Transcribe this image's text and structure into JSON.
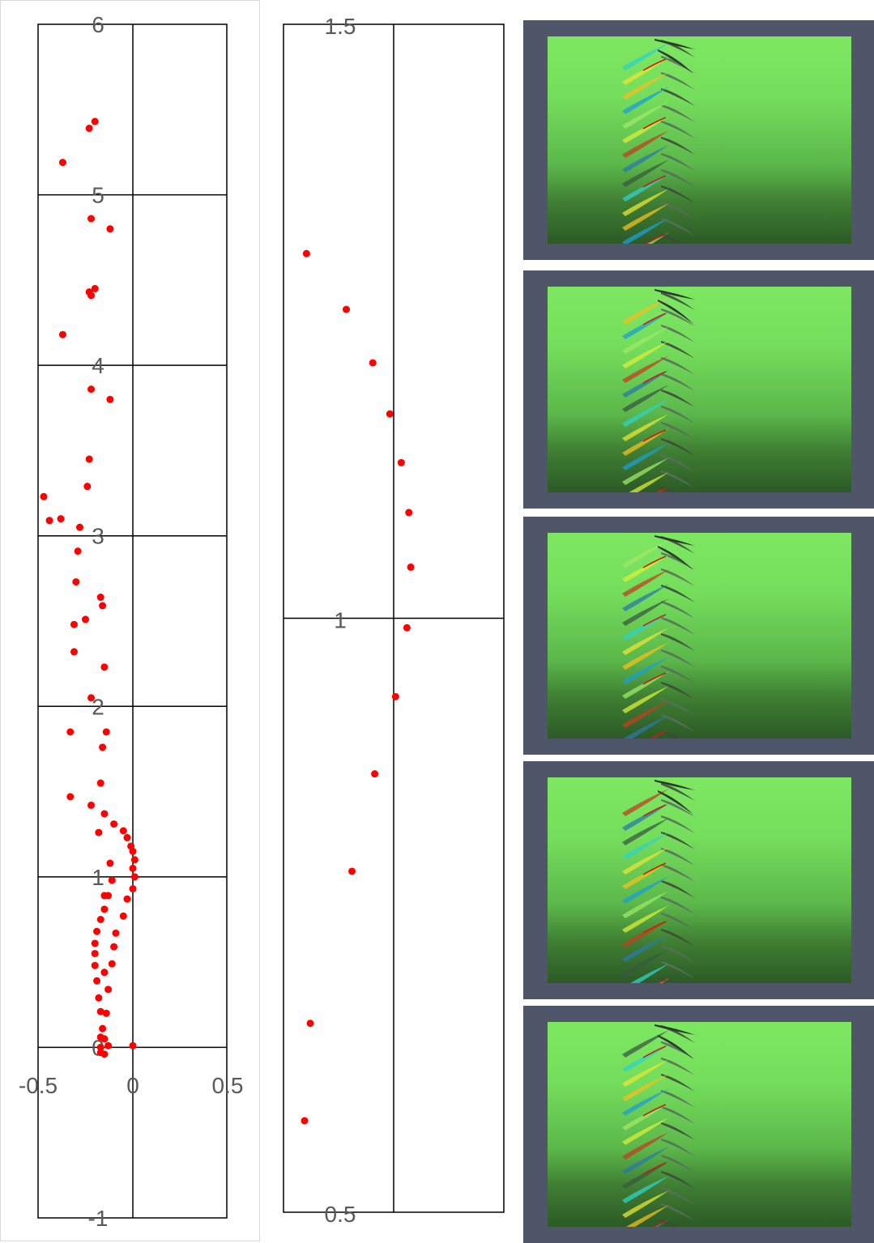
{
  "charts_colors": {
    "marker": "#ff0000",
    "axis": "#000000",
    "tick_text": "#595959",
    "panel_bg": "#50566a",
    "surface_light": "#7ee762",
    "surface_dark": "#2c5a26"
  },
  "chart_data": [
    {
      "type": "scatter",
      "title": "",
      "xlabel": "",
      "ylabel": "",
      "xlim": [
        -0.5,
        0.5
      ],
      "ylim": [
        -1,
        6
      ],
      "x_ticks": [
        "-0.5",
        "0",
        "0.5"
      ],
      "y_ticks": [
        "-1",
        "0",
        "1",
        "2",
        "3",
        "4",
        "5",
        "6"
      ],
      "grid": true,
      "marker_color": "#ff0000",
      "points": [
        [
          -0.2,
          5.43
        ],
        [
          -0.23,
          5.39
        ],
        [
          -0.37,
          5.19
        ],
        [
          -0.22,
          4.86
        ],
        [
          -0.12,
          4.8
        ],
        [
          -0.2,
          4.45
        ],
        [
          -0.23,
          4.43
        ],
        [
          -0.22,
          4.41
        ],
        [
          -0.37,
          4.18
        ],
        [
          -0.22,
          3.86
        ],
        [
          -0.12,
          3.8
        ],
        [
          -0.23,
          3.45
        ],
        [
          -0.24,
          3.29
        ],
        [
          -0.47,
          3.23
        ],
        [
          -0.38,
          3.1
        ],
        [
          -0.44,
          3.09
        ],
        [
          -0.28,
          3.05
        ],
        [
          -0.29,
          2.91
        ],
        [
          -0.3,
          2.73
        ],
        [
          -0.17,
          2.64
        ],
        [
          -0.16,
          2.59
        ],
        [
          -0.25,
          2.51
        ],
        [
          -0.31,
          2.48
        ],
        [
          -0.31,
          2.32
        ],
        [
          -0.15,
          2.23
        ],
        [
          -0.22,
          2.05
        ],
        [
          -0.33,
          1.85
        ],
        [
          -0.14,
          1.85
        ],
        [
          -0.16,
          1.76
        ],
        [
          -0.17,
          1.55
        ],
        [
          -0.33,
          1.47
        ],
        [
          -0.22,
          1.42
        ],
        [
          -0.15,
          1.37
        ],
        [
          -0.1,
          1.31
        ],
        [
          -0.05,
          1.27
        ],
        [
          -0.18,
          1.26
        ],
        [
          -0.03,
          1.23
        ],
        [
          -0.01,
          1.18
        ],
        [
          0.0,
          1.15
        ],
        [
          0.01,
          1.1
        ],
        [
          0.0,
          1.05
        ],
        [
          0.01,
          1.0
        ],
        [
          -0.12,
          1.08
        ],
        [
          -0.11,
          0.98
        ],
        [
          0.0,
          0.93
        ],
        [
          -0.15,
          0.89
        ],
        [
          -0.13,
          0.89
        ],
        [
          -0.03,
          0.87
        ],
        [
          -0.15,
          0.81
        ],
        [
          -0.05,
          0.77
        ],
        [
          -0.17,
          0.75
        ],
        [
          -0.19,
          0.68
        ],
        [
          -0.09,
          0.67
        ],
        [
          -0.2,
          0.61
        ],
        [
          -0.1,
          0.59
        ],
        [
          -0.2,
          0.55
        ],
        [
          -0.11,
          0.49
        ],
        [
          -0.2,
          0.48
        ],
        [
          -0.15,
          0.44
        ],
        [
          -0.19,
          0.39
        ],
        [
          -0.13,
          0.34
        ],
        [
          -0.18,
          0.29
        ],
        [
          -0.17,
          0.21
        ],
        [
          -0.14,
          0.2
        ],
        [
          -0.16,
          0.11
        ],
        [
          -0.17,
          0.06
        ],
        [
          -0.15,
          0.05
        ],
        [
          -0.13,
          0.01
        ],
        [
          -0.17,
          0.0
        ],
        [
          0.0,
          0.01
        ],
        [
          -0.17,
          -0.03
        ],
        [
          -0.15,
          -0.04
        ]
      ]
    },
    {
      "type": "scatter",
      "title": "",
      "xlabel": "",
      "ylabel": "",
      "ylim": [
        0.5,
        1.5
      ],
      "y_ticks": [
        "0.5",
        "1",
        "1.5"
      ],
      "grid": true,
      "marker_color": "#ff0000",
      "points": [
        [
          -0.46,
          1.307
        ],
        [
          -0.25,
          1.26
        ],
        [
          -0.11,
          1.215
        ],
        [
          -0.02,
          1.172
        ],
        [
          0.04,
          1.131
        ],
        [
          0.08,
          1.089
        ],
        [
          0.09,
          1.043
        ],
        [
          0.07,
          0.992
        ],
        [
          0.01,
          0.934
        ],
        [
          -0.1,
          0.869
        ],
        [
          -0.22,
          0.787
        ],
        [
          -0.44,
          0.659
        ],
        [
          -0.47,
          0.577
        ]
      ]
    }
  ],
  "images": [
    {
      "name": "cascade-render-1"
    },
    {
      "name": "cascade-render-2"
    },
    {
      "name": "cascade-render-3"
    },
    {
      "name": "cascade-render-4"
    },
    {
      "name": "cascade-render-5"
    }
  ]
}
